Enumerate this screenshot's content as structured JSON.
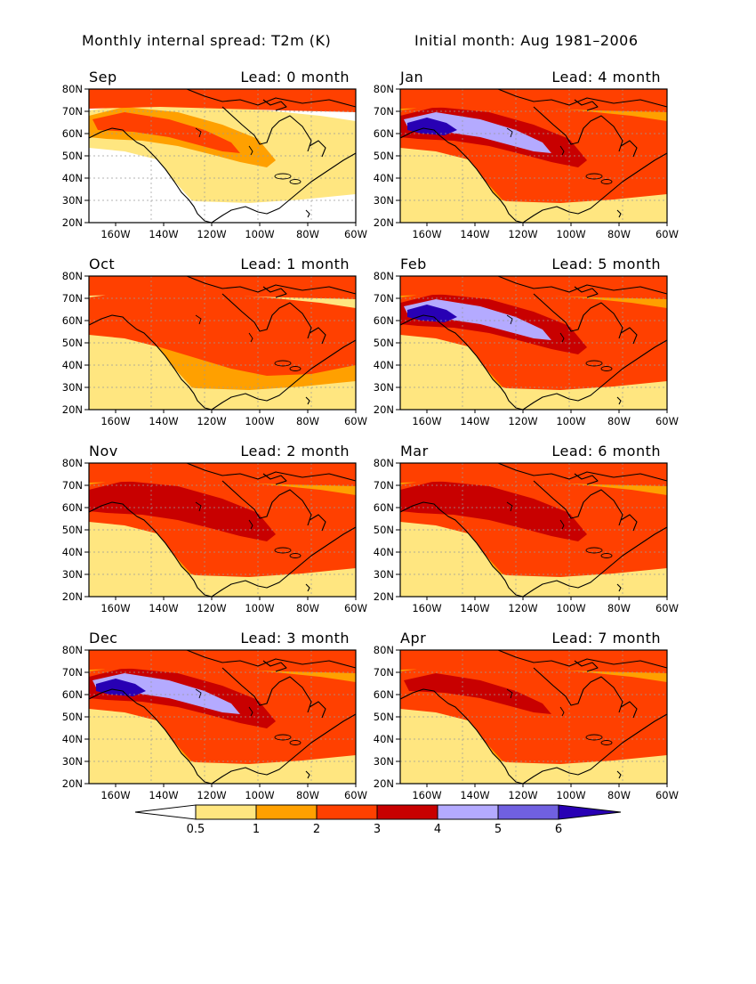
{
  "title_left": "Monthly internal spread: T2m (K)",
  "title_right": "Initial month: Aug 1981–2006",
  "lat_labels": [
    "80N",
    "70N",
    "60N",
    "50N",
    "40N",
    "30N",
    "20N"
  ],
  "lon_labels": [
    "160W",
    "140W",
    "120W",
    "100W",
    "80W",
    "60W"
  ],
  "panels": [
    {
      "month": "Sep",
      "lead": "Lead: 0 month",
      "levels": [
        1,
        2,
        3,
        1,
        0,
        0
      ],
      "south": 0
    },
    {
      "month": "Jan",
      "lead": "Lead: 4 month",
      "levels": [
        3,
        4,
        5,
        3,
        2,
        1
      ],
      "south": 1
    },
    {
      "month": "Oct",
      "lead": "Lead: 1 month",
      "levels": [
        3,
        3,
        3,
        2,
        1,
        1
      ],
      "south": 1
    },
    {
      "month": "Feb",
      "lead": "Lead: 5 month",
      "levels": [
        3,
        4,
        5,
        3,
        2,
        1
      ],
      "south": 1
    },
    {
      "month": "Nov",
      "lead": "Lead: 2 month",
      "levels": [
        3,
        4,
        4,
        3,
        2,
        1
      ],
      "south": 1
    },
    {
      "month": "Mar",
      "lead": "Lead: 6 month",
      "levels": [
        3,
        4,
        4,
        3,
        2,
        1
      ],
      "south": 1
    },
    {
      "month": "Dec",
      "lead": "Lead: 3 month",
      "levels": [
        3,
        4,
        5,
        3,
        2,
        1
      ],
      "south": 1
    },
    {
      "month": "Apr",
      "lead": "Lead: 7 month",
      "levels": [
        3,
        3,
        4,
        3,
        2,
        1
      ],
      "south": 1
    }
  ],
  "colorbar": {
    "labels": [
      "0.5",
      "1",
      "2",
      "3",
      "4",
      "5",
      "6"
    ],
    "colors": [
      "#ffffff",
      "#ffe680",
      "#ffa000",
      "#ff4000",
      "#c80000",
      "#b4aaff",
      "#7060e0",
      "#2800b4"
    ]
  }
}
